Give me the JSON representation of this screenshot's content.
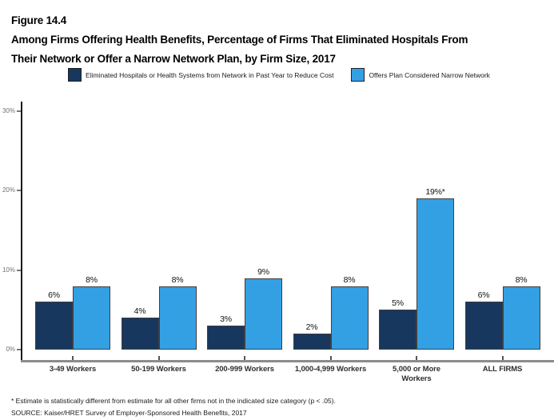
{
  "figure": {
    "number": "Figure 14.4",
    "title_line1": "Among Firms Offering Health Benefits, Percentage of Firms That Eliminated Hospitals From",
    "title_line2": "Their Network or Offer a Narrow Network Plan, by Firm Size, 2017"
  },
  "legend": {
    "items": [
      {
        "label": "Eliminated Hospitals or Health Systems from Network in Past Year to Reduce Cost",
        "color": "#17375E"
      },
      {
        "label": "Offers Plan Considered Narrow Network",
        "color": "#33A0E4"
      }
    ]
  },
  "chart_data": {
    "type": "bar",
    "title": "Among Firms Offering Health Benefits, Percentage of Firms That Eliminated Hospitals From Their Network or Offer a Narrow Network Plan, by Firm Size, 2017",
    "categories": [
      "3-49 Workers",
      "50-199 Workers",
      "200-999 Workers",
      "1,000-4,999 Workers",
      "5,000 or More\nWorkers",
      "ALL FIRMS"
    ],
    "series": [
      {
        "name": "Eliminated Hospitals or Health Systems from Network in Past Year to Reduce Cost",
        "color": "#17375E",
        "values": [
          6,
          4,
          3,
          2,
          5,
          6
        ],
        "labels": [
          "6%",
          "4%",
          "3%",
          "2%",
          "5%",
          "6%"
        ]
      },
      {
        "name": "Offers Plan Considered Narrow Network",
        "color": "#33A0E4",
        "values": [
          8,
          8,
          9,
          8,
          19,
          8
        ],
        "labels": [
          "8%",
          "8%",
          "9%",
          "8%",
          "19%*",
          "8%"
        ]
      }
    ],
    "xlabel": "",
    "ylabel": "",
    "y_ticks": [
      "0%",
      "10%",
      "20%",
      "30%"
    ],
    "y_tick_values": [
      0,
      10,
      20,
      30
    ],
    "ylim": [
      0,
      31
    ],
    "grid": false,
    "legend_position": "top",
    "bar_border_color": "#3F3F3F"
  },
  "footnotes": {
    "note": "* Estimate is statistically different from estimate for all other firms not in the indicated size category (p < .05).",
    "source": "SOURCE: Kaiser/HRET Survey of Employer-Sponsored Health Benefits, 2017"
  }
}
